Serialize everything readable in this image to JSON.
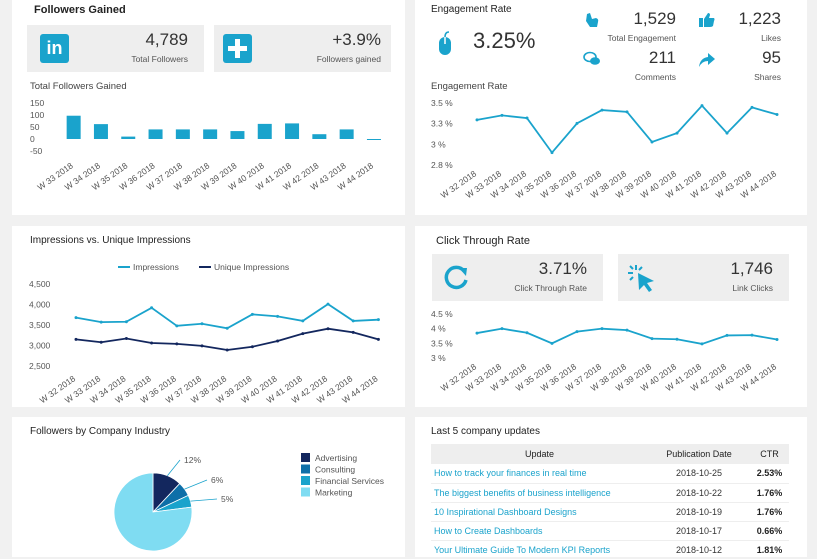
{
  "followers": {
    "title": "Followers Gained",
    "total_value": "4,789",
    "total_label": "Total Followers",
    "growth_value": "+3.9%",
    "growth_label": "Followers gained",
    "chart_title": "Total Followers Gained",
    "linkedin_icon": "linkedin-icon",
    "plus_icon": "plus-icon"
  },
  "engagement": {
    "title": "Engagement Rate",
    "rate": "3.25%",
    "total_value": "1,529",
    "total_label": "Total Engagement",
    "likes_value": "1,223",
    "likes_label": "Likes",
    "comments_value": "211",
    "comments_label": "Comments",
    "shares_value": "95",
    "shares_label": "Shares",
    "chart_title": "Engagement Rate"
  },
  "impressions": {
    "title": "Impressions vs. Unique Impressions"
  },
  "ctr": {
    "title": "Click Through Rate",
    "rate_value": "3.71%",
    "rate_label": "Click Through Rate",
    "clicks_value": "1,746",
    "clicks_label": "Link Clicks"
  },
  "industry": {
    "title": "Followers by Company Industry"
  },
  "updates": {
    "title": "Last 5 company updates",
    "columns": [
      "Update",
      "Publication Date",
      "CTR"
    ],
    "rows": [
      {
        "update": "How to track your finances in real time",
        "date": "2018-10-25",
        "ctr": "2.53%"
      },
      {
        "update": "The biggest benefits of business intelligence",
        "date": "2018-10-22",
        "ctr": "1.76%"
      },
      {
        "update": "10 Inspirational Dashboard Designs",
        "date": "2018-10-19",
        "ctr": "1.76%"
      },
      {
        "update": "How to Create Dashboards",
        "date": "2018-10-17",
        "ctr": "0.66%"
      },
      {
        "update": "Your Ultimate Guide To Modern KPI Reports",
        "date": "2018-10-12",
        "ctr": "1.81%"
      }
    ]
  },
  "colors": {
    "accent": "#1aa3cc",
    "navy": "#13275e",
    "light": "#4fd3ee"
  },
  "chart_data": [
    {
      "id": "followers",
      "type": "bar",
      "categories": [
        "W 33 2018",
        "W 34 2018",
        "W 35 2018",
        "W 36 2018",
        "W 37 2018",
        "W 38 2018",
        "W 39 2018",
        "W 40 2018",
        "W 41 2018",
        "W 42 2018",
        "W 43 2018",
        "W 44 2018"
      ],
      "values": [
        97,
        62,
        10,
        40,
        40,
        40,
        33,
        63,
        65,
        20,
        40,
        -2
      ],
      "ylim": [
        -50,
        150
      ],
      "yticks": [
        "150",
        "100",
        "50",
        "0",
        "-50"
      ]
    },
    {
      "id": "engagement",
      "type": "line",
      "categories": [
        "W 32 2018",
        "W 33 2018",
        "W 34 2018",
        "W 35 2018",
        "W 36 2018",
        "W 37 2018",
        "W 38 2018",
        "W 39 2018",
        "W 40 2018",
        "W 41 2018",
        "W 42 2018",
        "W 43 2018",
        "W 44 2018"
      ],
      "values": [
        3.31,
        3.36,
        3.33,
        2.94,
        3.27,
        3.42,
        3.4,
        3.06,
        3.16,
        3.47,
        3.16,
        3.45,
        3.37
      ],
      "ylim": [
        2.8,
        3.5
      ],
      "yticks": [
        "3.5 %",
        "3.3 %",
        "3 %",
        "2.8 %"
      ]
    },
    {
      "id": "impressions",
      "type": "line",
      "categories": [
        "W 32 2018",
        "W 33 2018",
        "W 34 2018",
        "W 35 2018",
        "W 36 2018",
        "W 37 2018",
        "W 38 2018",
        "W 39 2018",
        "W 40 2018",
        "W 41 2018",
        "W 42 2018",
        "W 43 2018",
        "W 44 2018"
      ],
      "series": [
        {
          "name": "Impressions",
          "values": [
            3680,
            3570,
            3580,
            3920,
            3480,
            3530,
            3420,
            3760,
            3710,
            3600,
            4010,
            3600,
            3630
          ]
        },
        {
          "name": "Unique Impressions",
          "values": [
            3150,
            3080,
            3170,
            3060,
            3040,
            2990,
            2890,
            2970,
            3110,
            3290,
            3410,
            3320,
            3150
          ]
        }
      ],
      "ylim": [
        2500,
        4500
      ],
      "yticks": [
        "4,500",
        "4,000",
        "3,500",
        "3,000",
        "2,500"
      ],
      "legend": "top-center"
    },
    {
      "id": "ctr",
      "type": "line",
      "categories": [
        "W 32 2018",
        "W 33 2018",
        "W 34 2018",
        "W 35 2018",
        "W 36 2018",
        "W 37 2018",
        "W 38 2018",
        "W 39 2018",
        "W 40 2018",
        "W 41 2018",
        "W 42 2018",
        "W 43 2018",
        "W 44 2018"
      ],
      "values": [
        3.85,
        4.0,
        3.86,
        3.5,
        3.9,
        4.0,
        3.95,
        3.66,
        3.64,
        3.48,
        3.77,
        3.78,
        3.63
      ],
      "ylim": [
        3,
        4.5
      ],
      "yticks": [
        "4.5 %",
        "4 %",
        "3.5 %",
        "3 %"
      ]
    },
    {
      "id": "industry",
      "type": "pie",
      "labels": [
        "Advertising",
        "Consulting",
        "Financial Services",
        "Marketing"
      ],
      "values": [
        12,
        6,
        5,
        77
      ],
      "data_labels": [
        "12%",
        "6%",
        "5%",
        ""
      ],
      "colors": [
        "#13275e",
        "#0e6fa8",
        "#1aa3cc",
        "#7fdcf2"
      ]
    }
  ]
}
